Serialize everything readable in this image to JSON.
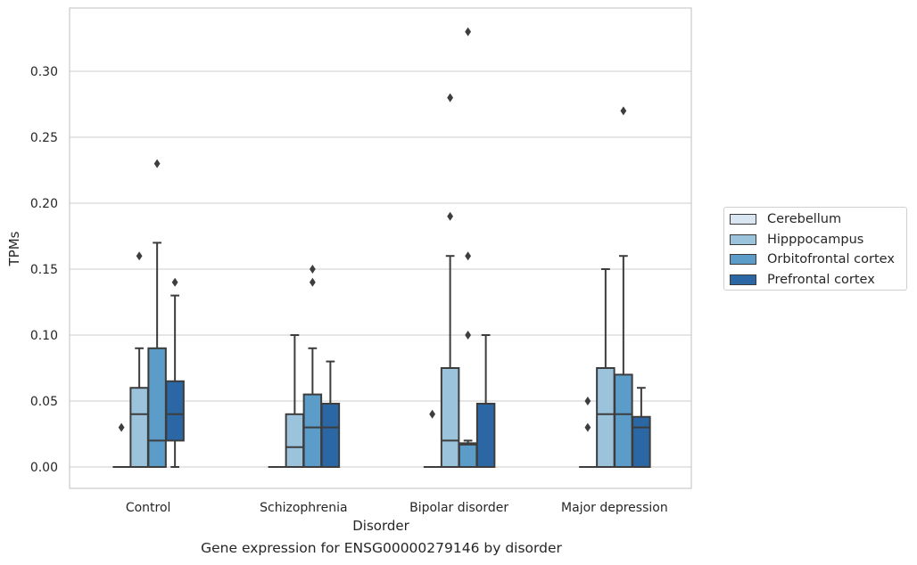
{
  "chart_data": {
    "type": "box",
    "title": "Gene expression for ENSG00000279146 by disorder",
    "xlabel": "Disorder",
    "ylabel": "TPMs",
    "ylim": [
      -0.016,
      0.346
    ],
    "yticks": [
      0.0,
      0.05,
      0.1,
      0.15,
      0.2,
      0.25,
      0.3
    ],
    "ytick_labels": [
      "0.00",
      "0.05",
      "0.10",
      "0.15",
      "0.20",
      "0.25",
      "0.30"
    ],
    "grid": true,
    "legend_position": "right",
    "categories": [
      "Control",
      "Schizophrenia",
      "Bipolar disorder",
      "Major depression"
    ],
    "series": [
      {
        "name": "Cerebellum",
        "color": "#d9e6f2",
        "boxes": [
          {
            "q1": 0,
            "median": 0,
            "q3": 0,
            "whisker_low": 0,
            "whisker_high": 0,
            "outliers": [
              0.03
            ]
          },
          {
            "q1": 0,
            "median": 0,
            "q3": 0,
            "whisker_low": 0,
            "whisker_high": 0,
            "outliers": []
          },
          {
            "q1": 0,
            "median": 0,
            "q3": 0,
            "whisker_low": 0,
            "whisker_high": 0,
            "outliers": [
              0.04
            ]
          },
          {
            "q1": 0,
            "median": 0,
            "q3": 0,
            "whisker_low": 0,
            "whisker_high": 0,
            "outliers": [
              0.03,
              0.05
            ]
          }
        ]
      },
      {
        "name": "Hipppocampus",
        "color": "#9cc3dc",
        "boxes": [
          {
            "q1": 0,
            "median": 0.04,
            "q3": 0.06,
            "whisker_low": 0,
            "whisker_high": 0.09,
            "outliers": [
              0.16
            ]
          },
          {
            "q1": 0,
            "median": 0.015,
            "q3": 0.04,
            "whisker_low": 0,
            "whisker_high": 0.1,
            "outliers": []
          },
          {
            "q1": 0,
            "median": 0.02,
            "q3": 0.075,
            "whisker_low": 0,
            "whisker_high": 0.16,
            "outliers": [
              0.19,
              0.28
            ]
          },
          {
            "q1": 0,
            "median": 0.04,
            "q3": 0.075,
            "whisker_low": 0,
            "whisker_high": 0.15,
            "outliers": []
          }
        ]
      },
      {
        "name": "Orbitofrontal cortex",
        "color": "#5b9cc8",
        "boxes": [
          {
            "q1": 0,
            "median": 0.02,
            "q3": 0.09,
            "whisker_low": 0,
            "whisker_high": 0.17,
            "outliers": [
              0.23
            ]
          },
          {
            "q1": 0,
            "median": 0.03,
            "q3": 0.055,
            "whisker_low": 0,
            "whisker_high": 0.09,
            "outliers": [
              0.14,
              0.15
            ]
          },
          {
            "q1": 0,
            "median": 0.017,
            "q3": 0.018,
            "whisker_low": 0,
            "whisker_high": 0.02,
            "outliers": [
              0.1,
              0.16,
              0.33
            ]
          },
          {
            "q1": 0,
            "median": 0.04,
            "q3": 0.07,
            "whisker_low": 0,
            "whisker_high": 0.16,
            "outliers": [
              0.27
            ]
          }
        ]
      },
      {
        "name": "Prefrontal cortex",
        "color": "#2b67a4",
        "boxes": [
          {
            "q1": 0.02,
            "median": 0.04,
            "q3": 0.065,
            "whisker_low": 0,
            "whisker_high": 0.13,
            "outliers": [
              0.14
            ]
          },
          {
            "q1": 0,
            "median": 0.03,
            "q3": 0.048,
            "whisker_low": 0,
            "whisker_high": 0.08,
            "outliers": []
          },
          {
            "q1": 0,
            "median": 0,
            "q3": 0.048,
            "whisker_low": 0,
            "whisker_high": 0.1,
            "outliers": []
          },
          {
            "q1": 0,
            "median": 0.03,
            "q3": 0.038,
            "whisker_low": 0,
            "whisker_high": 0.06,
            "outliers": []
          }
        ]
      }
    ]
  }
}
